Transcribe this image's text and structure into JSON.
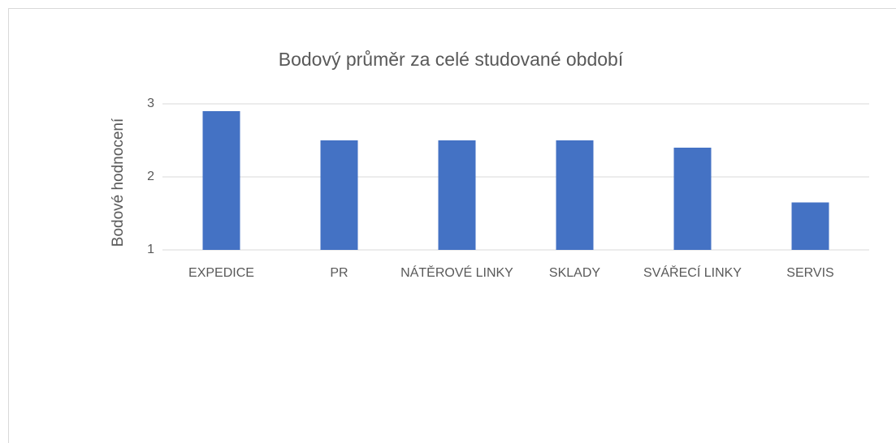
{
  "chart_data": {
    "type": "bar",
    "title": "Bodový průměr za celé studované období",
    "y_label": "Bodové hodnocení",
    "categories": [
      "EXPEDICE",
      "PR",
      "NÁTĚROVÉ LINKY",
      "SKLADY",
      "SVÁŘECÍ LINKY",
      "SERVIS"
    ],
    "values": [
      2.9,
      2.5,
      2.5,
      2.5,
      2.4,
      1.65
    ],
    "color": "#4472c4",
    "ylim": [
      1,
      3
    ],
    "yticks": [
      1,
      2,
      3
    ],
    "grid": true
  }
}
